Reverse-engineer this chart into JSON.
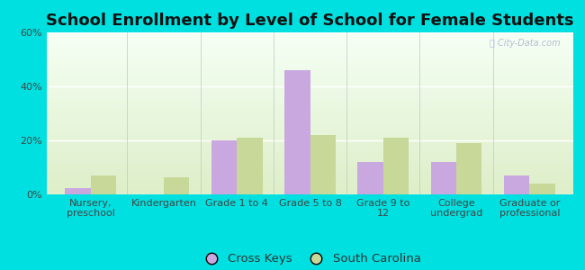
{
  "title": "School Enrollment by Level of School for Female Students",
  "categories": [
    "Nursery,\npreschool",
    "Kindergarten",
    "Grade 1 to 4",
    "Grade 5 to 8",
    "Grade 9 to\n12",
    "College\nundergrad",
    "Graduate or\nprofessional"
  ],
  "cross_keys": [
    2.5,
    0,
    20,
    46,
    12,
    12,
    7
  ],
  "south_carolina": [
    7,
    6.5,
    21,
    22,
    21,
    19,
    4
  ],
  "bar_color_ck": "#c9a8e0",
  "bar_color_sc": "#c8d898",
  "background_color": "#00e0e0",
  "plot_bg_top": "#f5fff5",
  "plot_bg_bottom": "#ddeec8",
  "ylim": [
    0,
    60
  ],
  "yticks": [
    0,
    20,
    40,
    60
  ],
  "ytick_labels": [
    "0%",
    "20%",
    "40%",
    "60%"
  ],
  "legend_label_ck": "Cross Keys",
  "legend_label_sc": "South Carolina",
  "title_fontsize": 13,
  "tick_fontsize": 8,
  "legend_fontsize": 9.5,
  "bar_width": 0.35,
  "xlim_left": -0.6,
  "xlim_right": 6.6
}
